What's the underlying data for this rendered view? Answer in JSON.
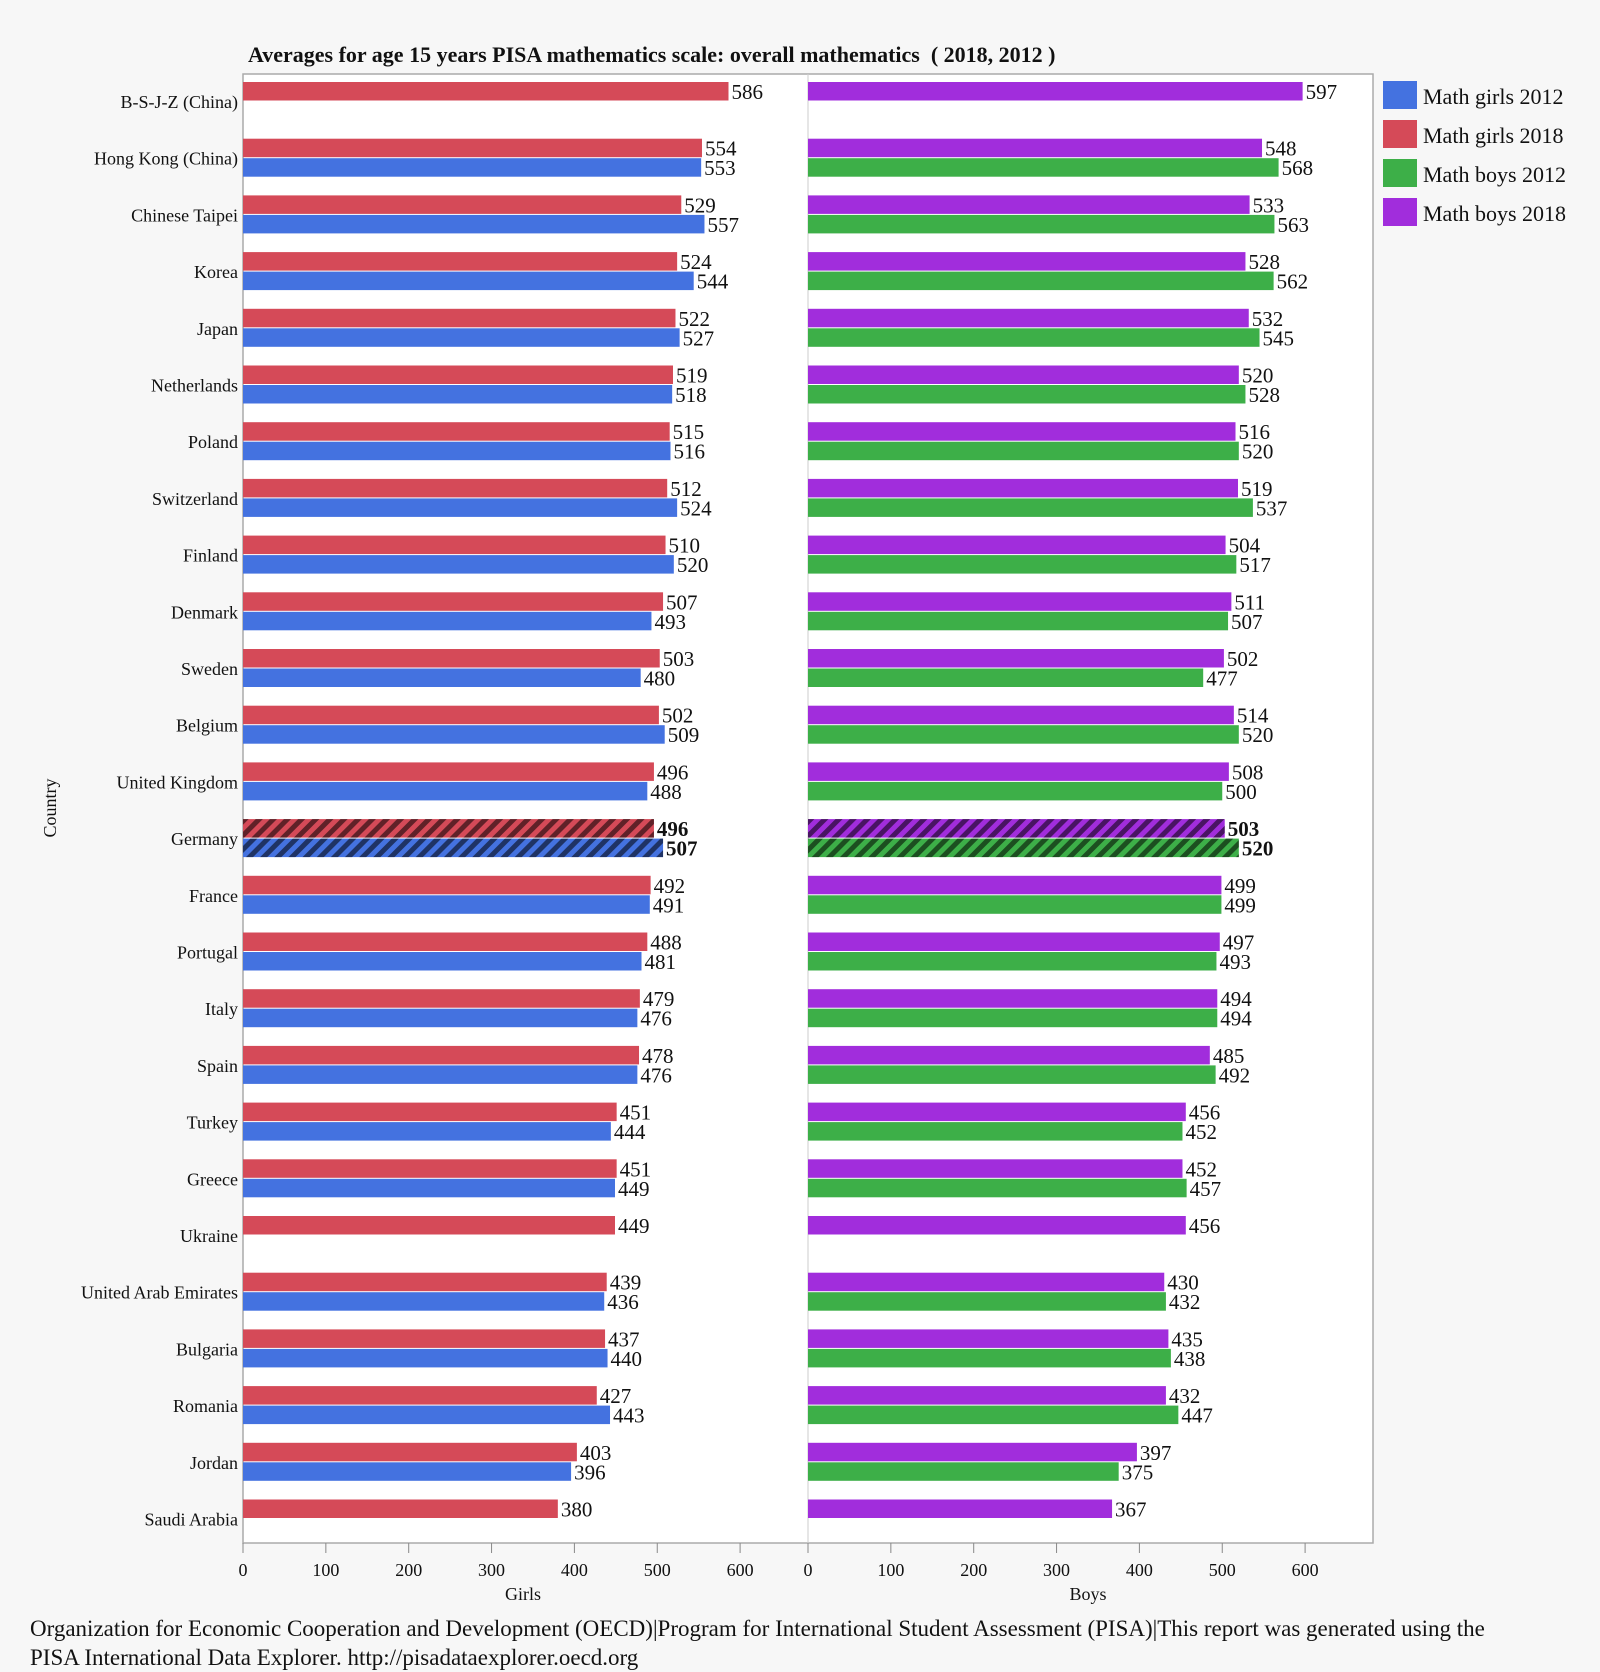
{
  "chart_data": {
    "type": "bar",
    "orientation": "horizontal",
    "title": "Averages for age 15 years PISA mathematics scale: overall mathematics  ( 2018, 2012 )",
    "ylabel": "Country",
    "panels": [
      {
        "xlabel": "Girls",
        "xlim": [
          0,
          640
        ],
        "ticks": [
          0,
          100,
          200,
          300,
          400,
          500,
          600
        ],
        "series_keys": [
          "girls2018",
          "girls2012"
        ]
      },
      {
        "xlabel": "Boys",
        "xlim": [
          0,
          650
        ],
        "ticks": [
          0,
          100,
          200,
          300,
          400,
          500,
          600
        ],
        "series_keys": [
          "boys2018",
          "boys2012"
        ]
      }
    ],
    "legend": {
      "placement": "top-right",
      "entries": [
        {
          "key": "girls2012",
          "label": "Math girls 2012",
          "color": "#4472e0"
        },
        {
          "key": "girls2018",
          "label": "Math girls 2018",
          "color": "#d54a58"
        },
        {
          "key": "boys2012",
          "label": "Math boys 2012",
          "color": "#3daf48"
        },
        {
          "key": "boys2018",
          "label": "Math boys 2018",
          "color": "#a12ddc"
        }
      ]
    },
    "highlighted_country": "Germany",
    "categories": [
      "B-S-J-Z (China)",
      "Hong Kong (China)",
      "Chinese Taipei",
      "Korea",
      "Japan",
      "Netherlands",
      "Poland",
      "Switzerland",
      "Finland",
      "Denmark",
      "Sweden",
      "Belgium",
      "United Kingdom",
      "Germany",
      "France",
      "Portugal",
      "Italy",
      "Spain",
      "Turkey",
      "Greece",
      "Ukraine",
      "United Arab Emirates",
      "Bulgaria",
      "Romania",
      "Jordan",
      "Saudi Arabia"
    ],
    "series": {
      "girls2018": [
        586,
        554,
        529,
        524,
        522,
        519,
        515,
        512,
        510,
        507,
        503,
        502,
        496,
        496,
        492,
        488,
        479,
        478,
        451,
        451,
        449,
        439,
        437,
        427,
        403,
        380
      ],
      "girls2012": [
        null,
        553,
        557,
        544,
        527,
        518,
        516,
        524,
        520,
        493,
        480,
        509,
        488,
        507,
        491,
        481,
        476,
        476,
        444,
        449,
        null,
        436,
        440,
        443,
        396,
        null
      ],
      "boys2018": [
        597,
        548,
        533,
        528,
        532,
        520,
        516,
        519,
        504,
        511,
        502,
        514,
        508,
        503,
        499,
        497,
        494,
        485,
        456,
        452,
        456,
        430,
        435,
        432,
        397,
        367
      ],
      "boys2012": [
        null,
        568,
        563,
        562,
        545,
        528,
        520,
        537,
        517,
        507,
        477,
        520,
        500,
        520,
        499,
        493,
        494,
        492,
        452,
        457,
        null,
        432,
        438,
        447,
        375,
        null
      ]
    }
  },
  "footer": {
    "line1": "Organization for Economic Cooperation and Development (OECD)|Program for International Student Assessment (PISA)|This report was generated using the",
    "line2": "PISA International Data Explorer. http://pisadataexplorer.oecd.org"
  }
}
